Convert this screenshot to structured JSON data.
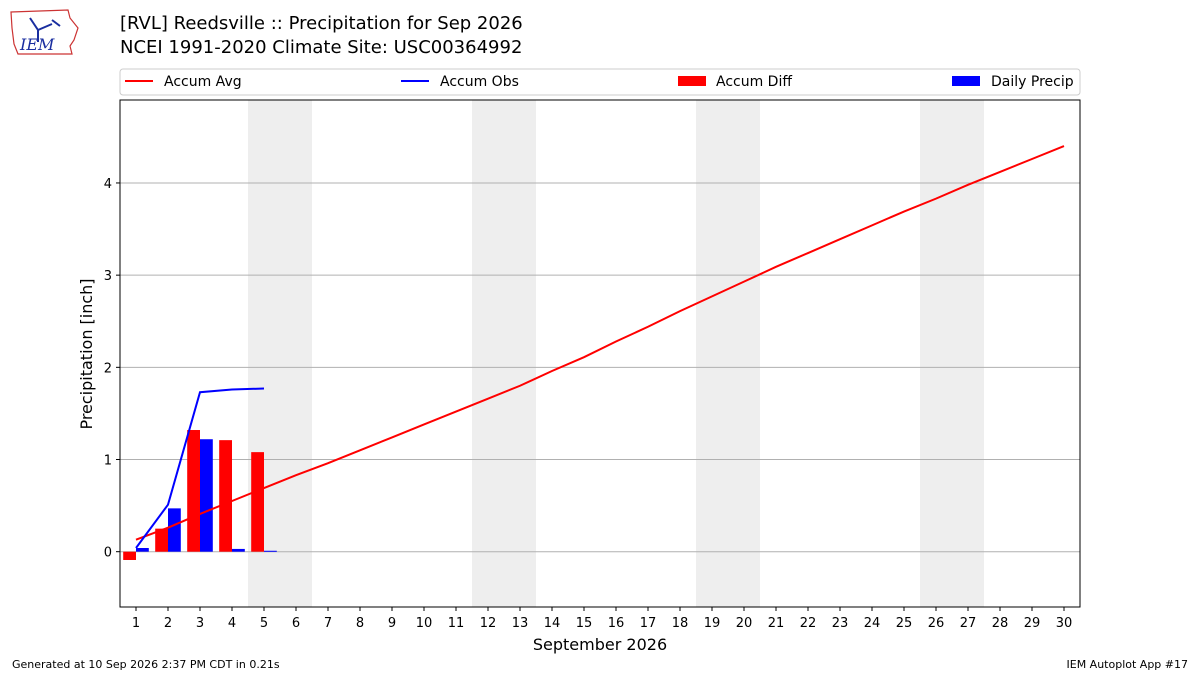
{
  "header": {
    "logo_text": "IEM",
    "title_line1": "[RVL] Reedsville :: Precipitation for Sep 2026",
    "title_line2": "NCEI 1991-2020 Climate Site: USC00364992"
  },
  "footer": {
    "generated": "Generated at 10 Sep 2026 2:37 PM CDT in 0.21s",
    "app": "IEM Autoplot App #17"
  },
  "colors": {
    "accum_avg": "#ff0000",
    "accum_obs": "#0000ff",
    "accum_diff": "#ff0000",
    "daily_precip": "#0000ff",
    "weekend_band": "#eeeeee",
    "grid": "#b0b0b0"
  },
  "chart_data": {
    "type": "bar",
    "xlabel": "September 2026",
    "ylabel": "Precipitation [inch]",
    "xlim": [
      0.5,
      30.5
    ],
    "ylim": [
      -0.6,
      4.9
    ],
    "x_ticks": [
      1,
      2,
      3,
      4,
      5,
      6,
      7,
      8,
      9,
      10,
      11,
      12,
      13,
      14,
      15,
      16,
      17,
      18,
      19,
      20,
      21,
      22,
      23,
      24,
      25,
      26,
      27,
      28,
      29,
      30
    ],
    "y_ticks": [
      0,
      1,
      2,
      3,
      4
    ],
    "grid": "horizontal",
    "legend_position": "top",
    "weekend_bands": [
      [
        4.5,
        6.5
      ],
      [
        11.5,
        13.5
      ],
      [
        18.5,
        20.5
      ],
      [
        25.5,
        27.5
      ]
    ],
    "series": [
      {
        "name": "Accum Avg",
        "kind": "line",
        "x": [
          1,
          2,
          3,
          4,
          5,
          6,
          7,
          8,
          9,
          10,
          11,
          12,
          13,
          14,
          15,
          16,
          17,
          18,
          19,
          20,
          21,
          22,
          23,
          24,
          25,
          26,
          27,
          28,
          29,
          30
        ],
        "values": [
          0.13,
          0.26,
          0.41,
          0.55,
          0.69,
          0.83,
          0.96,
          1.1,
          1.24,
          1.38,
          1.52,
          1.66,
          1.8,
          1.96,
          2.11,
          2.28,
          2.44,
          2.61,
          2.77,
          2.93,
          3.09,
          3.24,
          3.39,
          3.54,
          3.69,
          3.83,
          3.98,
          4.12,
          4.26,
          4.4
        ]
      },
      {
        "name": "Accum Obs",
        "kind": "line",
        "x": [
          1,
          2,
          3,
          4,
          5
        ],
        "values": [
          0.04,
          0.51,
          1.73,
          1.76,
          1.77
        ]
      },
      {
        "name": "Accum Diff",
        "kind": "bar",
        "x": [
          1,
          2,
          3,
          4,
          5
        ],
        "values": [
          -0.09,
          0.25,
          1.32,
          1.21,
          1.08
        ]
      },
      {
        "name": "Daily Precip",
        "kind": "bar",
        "x": [
          1,
          2,
          3,
          4,
          5
        ],
        "values": [
          0.04,
          0.47,
          1.22,
          0.03,
          0.01
        ]
      }
    ]
  }
}
